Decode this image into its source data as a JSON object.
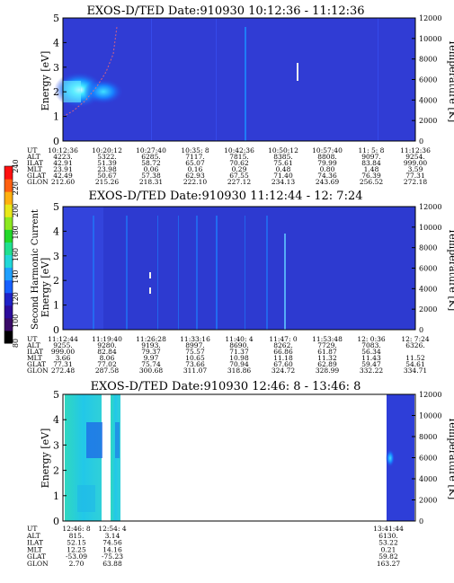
{
  "colorbar": {
    "label": "Second Harmonic Current",
    "ticks": [
      "240",
      "220",
      "200",
      "180",
      "160",
      "140",
      "120",
      "100",
      "80"
    ],
    "colors": [
      "#000000",
      "#3a0a68",
      "#2c0c9c",
      "#1f22c8",
      "#1760ff",
      "#1fa0ff",
      "#22d8d8",
      "#20e090",
      "#22d82a",
      "#8ce820",
      "#e8e81a",
      "#ffb010",
      "#ff6010",
      "#ff1010"
    ]
  },
  "chart_data": [
    {
      "type": "heatmap",
      "title": "EXOS-D/TED   Date:910930   10:12:36 - 11:12:36",
      "ylabel": "Energy [eV]",
      "y2label": "Temperature [K]",
      "ylim": [
        0,
        5
      ],
      "y2lim": [
        0,
        12000
      ],
      "yticks": [
        "0",
        "1",
        "2",
        "3",
        "4",
        "5"
      ],
      "y2ticks": [
        "0",
        "2000",
        "4000",
        "6000",
        "8000",
        "10000",
        "12000"
      ],
      "table_labels": [
        "UT",
        "ALT",
        "ILAT",
        "MLT",
        "GLAT",
        "GLON"
      ],
      "table_columns": [
        [
          "10:12:36",
          "4223.",
          "42.91",
          "23.91",
          "42.49",
          "212.60"
        ],
        [
          "10:20:12",
          "5322.",
          "51.39",
          "23.98",
          "50.67",
          "215.26"
        ],
        [
          "10:27:40",
          "6285.",
          "58.72",
          "0.06",
          "57.38",
          "218.31"
        ],
        [
          "10:35: 8",
          "7117.",
          "65.07",
          "0.16",
          "62.93",
          "222.10"
        ],
        [
          "10:42:36",
          "7815.",
          "70.62",
          "0.29",
          "67.55",
          "227.12"
        ],
        [
          "10:50:12",
          "8385.",
          "75.61",
          "0.48",
          "71.40",
          "234.13"
        ],
        [
          "10:57:40",
          "8808.",
          "79.99",
          "0.80",
          "74.36",
          "243.69"
        ],
        [
          "11: 5: 8",
          "9097.",
          "83.84",
          "1.48",
          "76.39",
          "256.52"
        ],
        [
          "11:12:36",
          "9254.",
          "999.00",
          "3.59",
          "77.31",
          "272.18"
        ]
      ]
    },
    {
      "type": "heatmap",
      "title": "EXOS-D/TED   Date:910930   11:12:44 - 12: 7:24",
      "ylabel": "Energy [eV]",
      "y2label": "Temperature [K]",
      "ylim": [
        0,
        5
      ],
      "y2lim": [
        0,
        12000
      ],
      "yticks": [
        "0",
        "1",
        "2",
        "3",
        "4",
        "5"
      ],
      "y2ticks": [
        "0",
        "2000",
        "4000",
        "6000",
        "8000",
        "10000",
        "12000"
      ],
      "table_labels": [
        "UT",
        "ALT",
        "ILAT",
        "MLT",
        "GLAT",
        "GLON"
      ],
      "table_columns": [
        [
          "11:12:44",
          "9255.",
          "999.00",
          "3.66",
          "77.31",
          "272.48"
        ],
        [
          "11:19:40",
          "9280.",
          "82.84",
          "8.06",
          "77.02",
          "287.58"
        ],
        [
          "11:26:28",
          "9193.",
          "79.37",
          "9.97",
          "75.74",
          "300.68"
        ],
        [
          "11:33:16",
          "8997.",
          "75.57",
          "10.65",
          "73.66",
          "311.07"
        ],
        [
          "11:40: 4",
          "8690.",
          "71.37",
          "10.98",
          "70.94",
          "318.86"
        ],
        [
          "11:47: 0",
          "8262.",
          "66.86",
          "11.18",
          "67.60",
          "324.72"
        ],
        [
          "11:53:48",
          "7729.",
          "61.87",
          "11.32",
          "62.89",
          "328.99"
        ],
        [
          "12: 0:36",
          "7083.",
          "56.34",
          "11.43",
          "59.47",
          "332.22"
        ],
        [
          "12: 7:24",
          "6326.",
          "",
          "11.52",
          "54.61",
          "334.71"
        ]
      ]
    },
    {
      "type": "heatmap",
      "title": "EXOS-D/TED   Date:910930   12:46: 8 - 13:46: 8",
      "ylabel": "Energy [eV]",
      "y2label": "Temperature [K]",
      "ylim": [
        0,
        5
      ],
      "y2lim": [
        0,
        12000
      ],
      "yticks": [
        "0",
        "1",
        "2",
        "3",
        "4",
        "5"
      ],
      "y2ticks": [
        "0",
        "2000",
        "4000",
        "6000",
        "8000",
        "10000",
        "12000"
      ],
      "table_labels": [
        "UT",
        "ALT",
        "ILAT",
        "MLT",
        "GLAT",
        "GLON"
      ],
      "table_columns": [
        [
          "12:46: 8",
          "815.",
          "52.15",
          "12.25",
          "-53.09",
          "2.70"
        ],
        [
          "12:54: 4",
          "3.14",
          "74.56",
          "14.16",
          "-75.23",
          "63.88"
        ],
        [
          "13:41:44",
          "6130.",
          "53.22",
          "0.21",
          "59.82",
          "163.27"
        ]
      ]
    }
  ]
}
